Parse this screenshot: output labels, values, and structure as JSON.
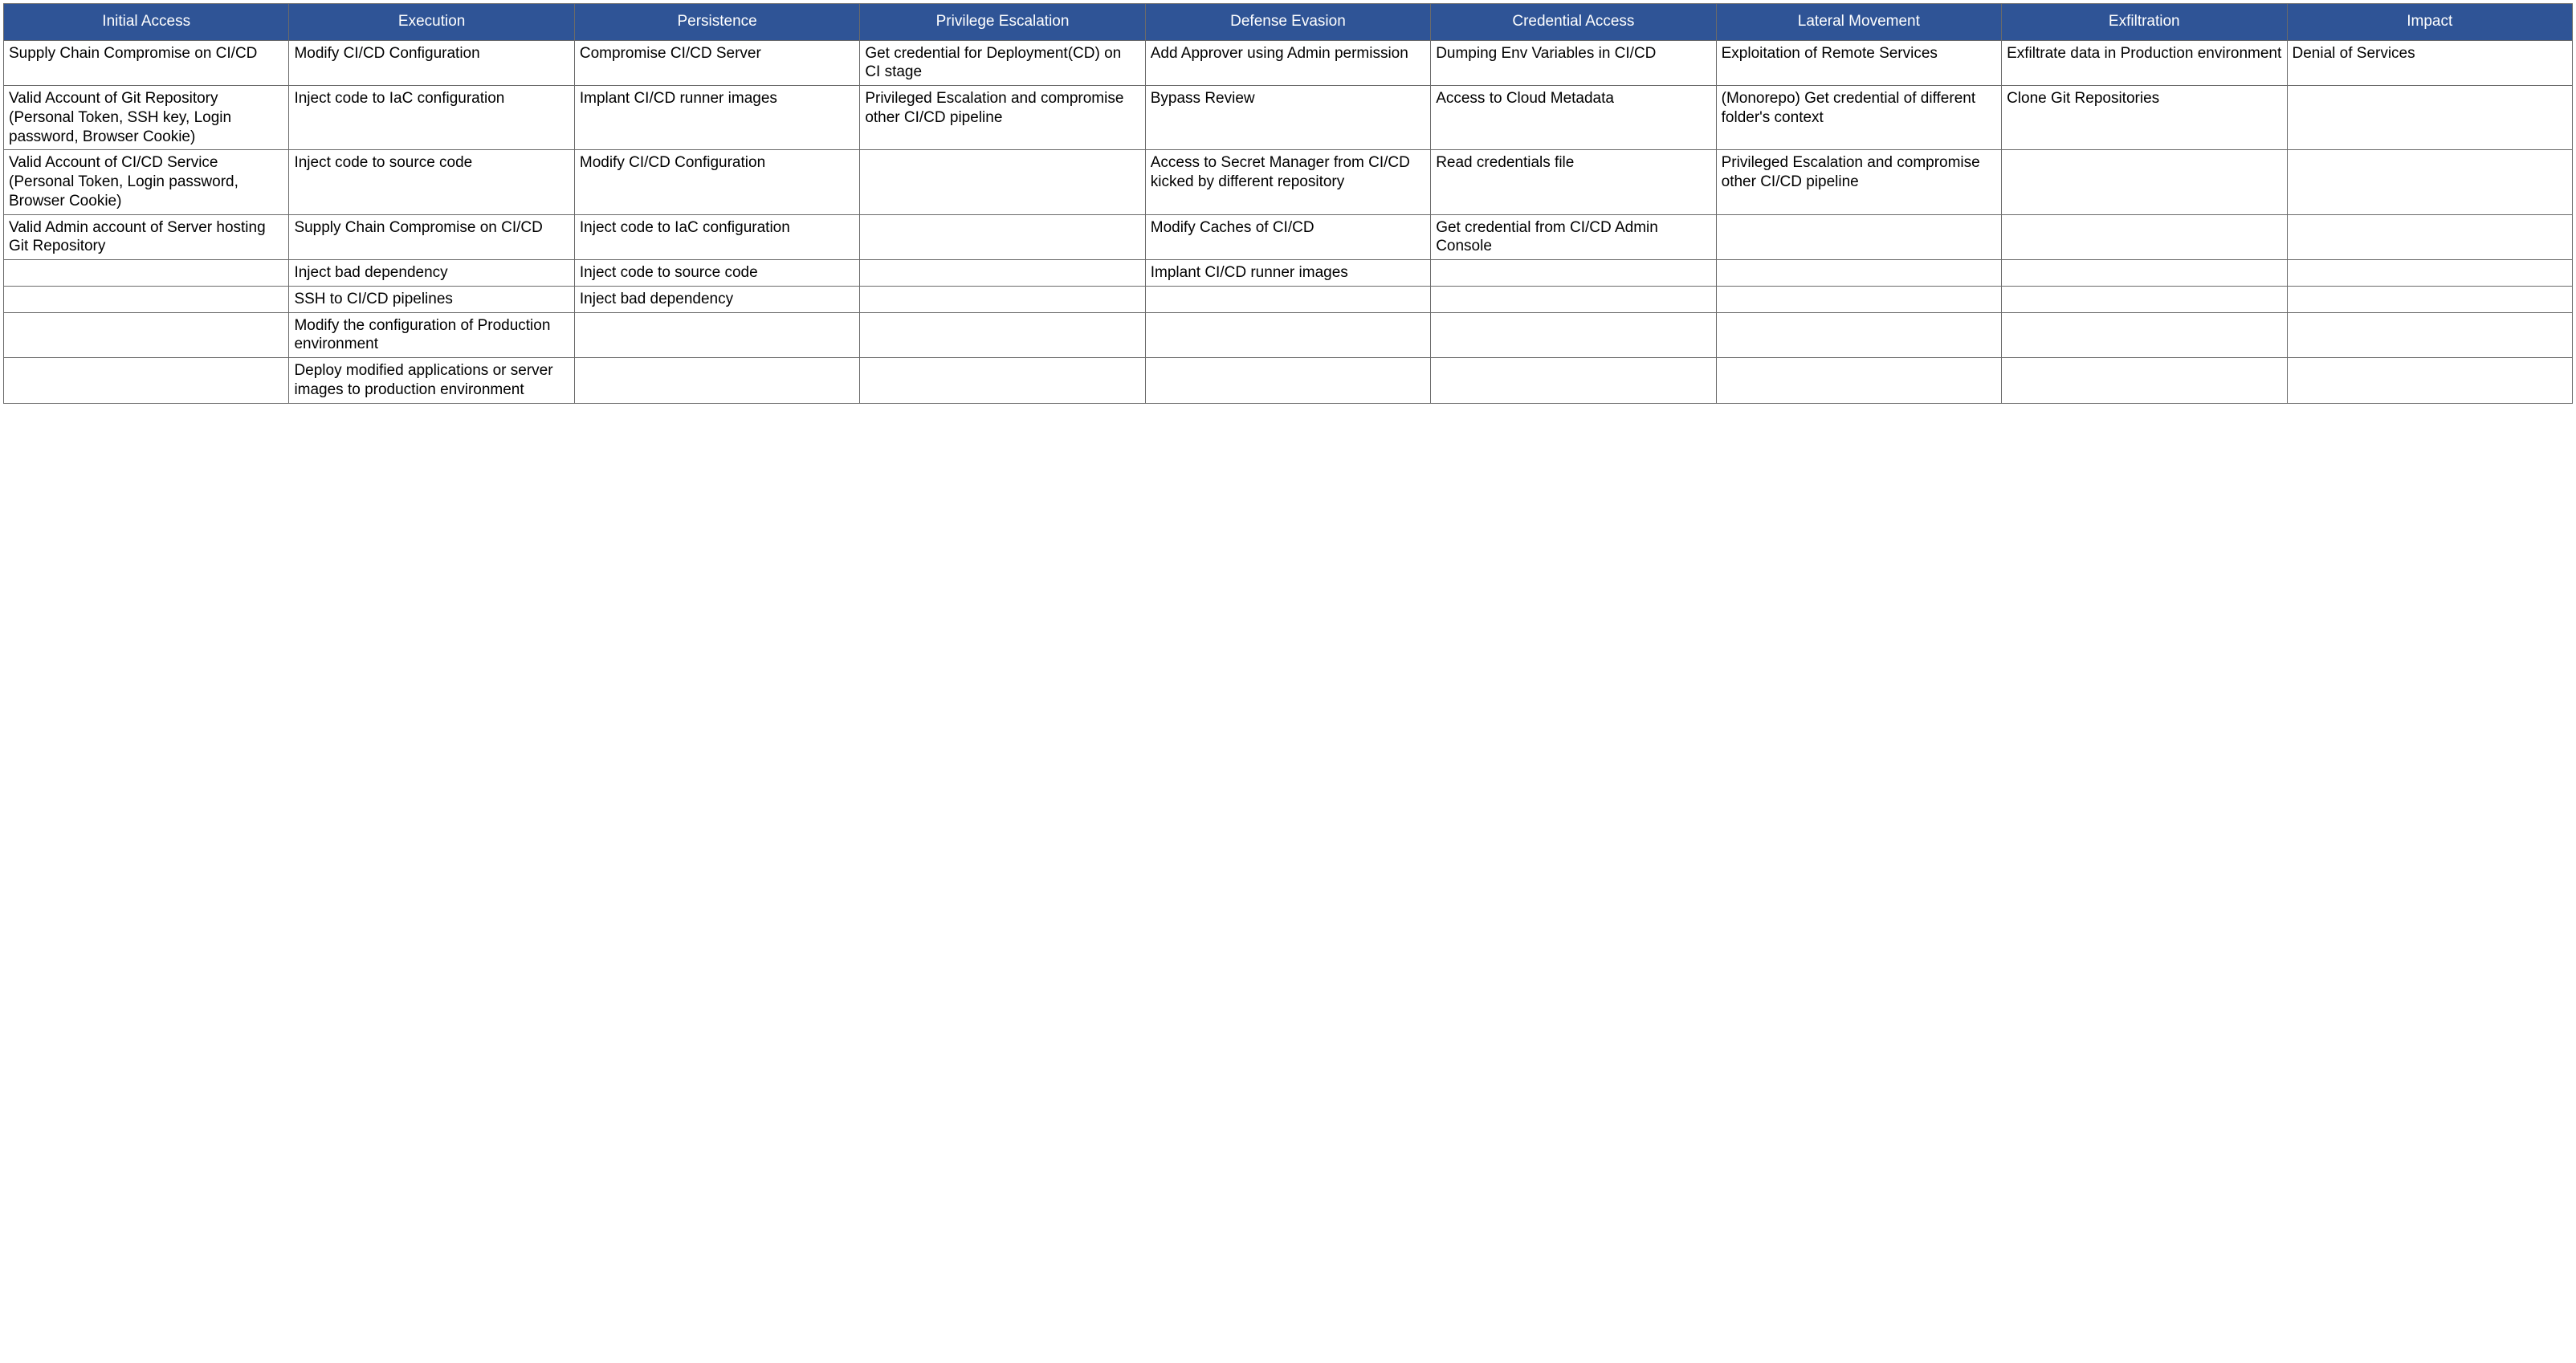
{
  "table": {
    "header_bg": "#2f5496",
    "header_fg": "#ffffff",
    "border_color": "#6a6a6a",
    "cell_bg": "#ffffff",
    "cell_fg": "#000000",
    "font_family": "Arial, Helvetica, sans-serif",
    "header_fontsize": 19,
    "cell_fontsize": 19,
    "columns": [
      "Initial Access",
      "Execution",
      "Persistence",
      "Privilege Escalation",
      "Defense Evasion",
      "Credential Access",
      "Lateral Movement",
      "Exfiltration",
      "Impact"
    ],
    "rows": [
      [
        "Supply Chain Compromise on CI/CD",
        "Modify CI/CD Configuration",
        "Compromise CI/CD Server",
        "Get credential for Deployment(CD) on CI stage",
        "Add Approver using Admin permission",
        "Dumping Env Variables in CI/CD",
        "Exploitation of Remote Services",
        "Exfiltrate data in Production environment",
        "Denial of Services"
      ],
      [
        "Valid Account of Git Repository (Personal Token, SSH key, Login password, Browser Cookie)",
        "Inject code to IaC configuration",
        "Implant CI/CD runner images",
        "Privileged Escalation and compromise other CI/CD pipeline",
        "Bypass Review",
        "Access to Cloud Metadata",
        "(Monorepo) Get credential of different folder's context",
        "Clone Git Repositories",
        ""
      ],
      [
        "Valid Account of CI/CD Service (Personal Token, Login password, Browser Cookie)",
        "Inject code to source code",
        "Modify CI/CD Configuration",
        "",
        "Access to Secret Manager from CI/CD kicked by different repository",
        "Read credentials file",
        "Privileged Escalation and compromise other CI/CD pipeline",
        "",
        ""
      ],
      [
        "Valid Admin account of Server hosting Git Repository",
        "Supply Chain Compromise on CI/CD",
        "Inject code to IaC configuration",
        "",
        "Modify Caches of CI/CD",
        "Get credential from CI/CD Admin Console",
        "",
        "",
        ""
      ],
      [
        "",
        "Inject bad dependency",
        "Inject code to source code",
        "",
        "Implant CI/CD runner images",
        "",
        "",
        "",
        ""
      ],
      [
        "",
        "SSH to CI/CD pipelines",
        "Inject bad dependency",
        "",
        "",
        "",
        "",
        "",
        ""
      ],
      [
        "",
        "Modify the configuration of Production environment",
        "",
        "",
        "",
        "",
        "",
        "",
        ""
      ],
      [
        "",
        "Deploy modified applications or server images to production environment",
        "",
        "",
        "",
        "",
        "",
        "",
        ""
      ]
    ]
  }
}
